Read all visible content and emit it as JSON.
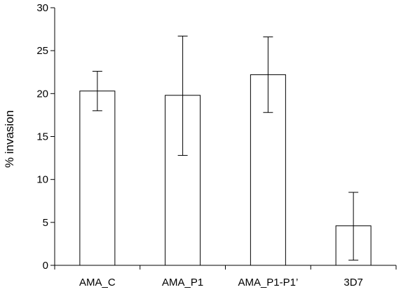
{
  "colors": {
    "bar_fill": "#ffffff",
    "bar_stroke": "#000000",
    "axis": "#000000",
    "background": "#ffffff"
  },
  "chart_data": {
    "type": "bar",
    "title": "",
    "xlabel": "",
    "ylabel": "% invasion",
    "ylim": [
      0,
      30
    ],
    "yticks": [
      0,
      5,
      10,
      15,
      20,
      25,
      30
    ],
    "grid": false,
    "legend": "none",
    "categories": [
      "AMA_C",
      "AMA_P1",
      "AMA_P1-P1’",
      "3D7"
    ],
    "values": [
      20.3,
      19.8,
      22.2,
      4.6
    ],
    "error_low": [
      18.0,
      12.8,
      17.8,
      0.6
    ],
    "error_high": [
      22.6,
      26.7,
      26.6,
      8.5
    ]
  }
}
